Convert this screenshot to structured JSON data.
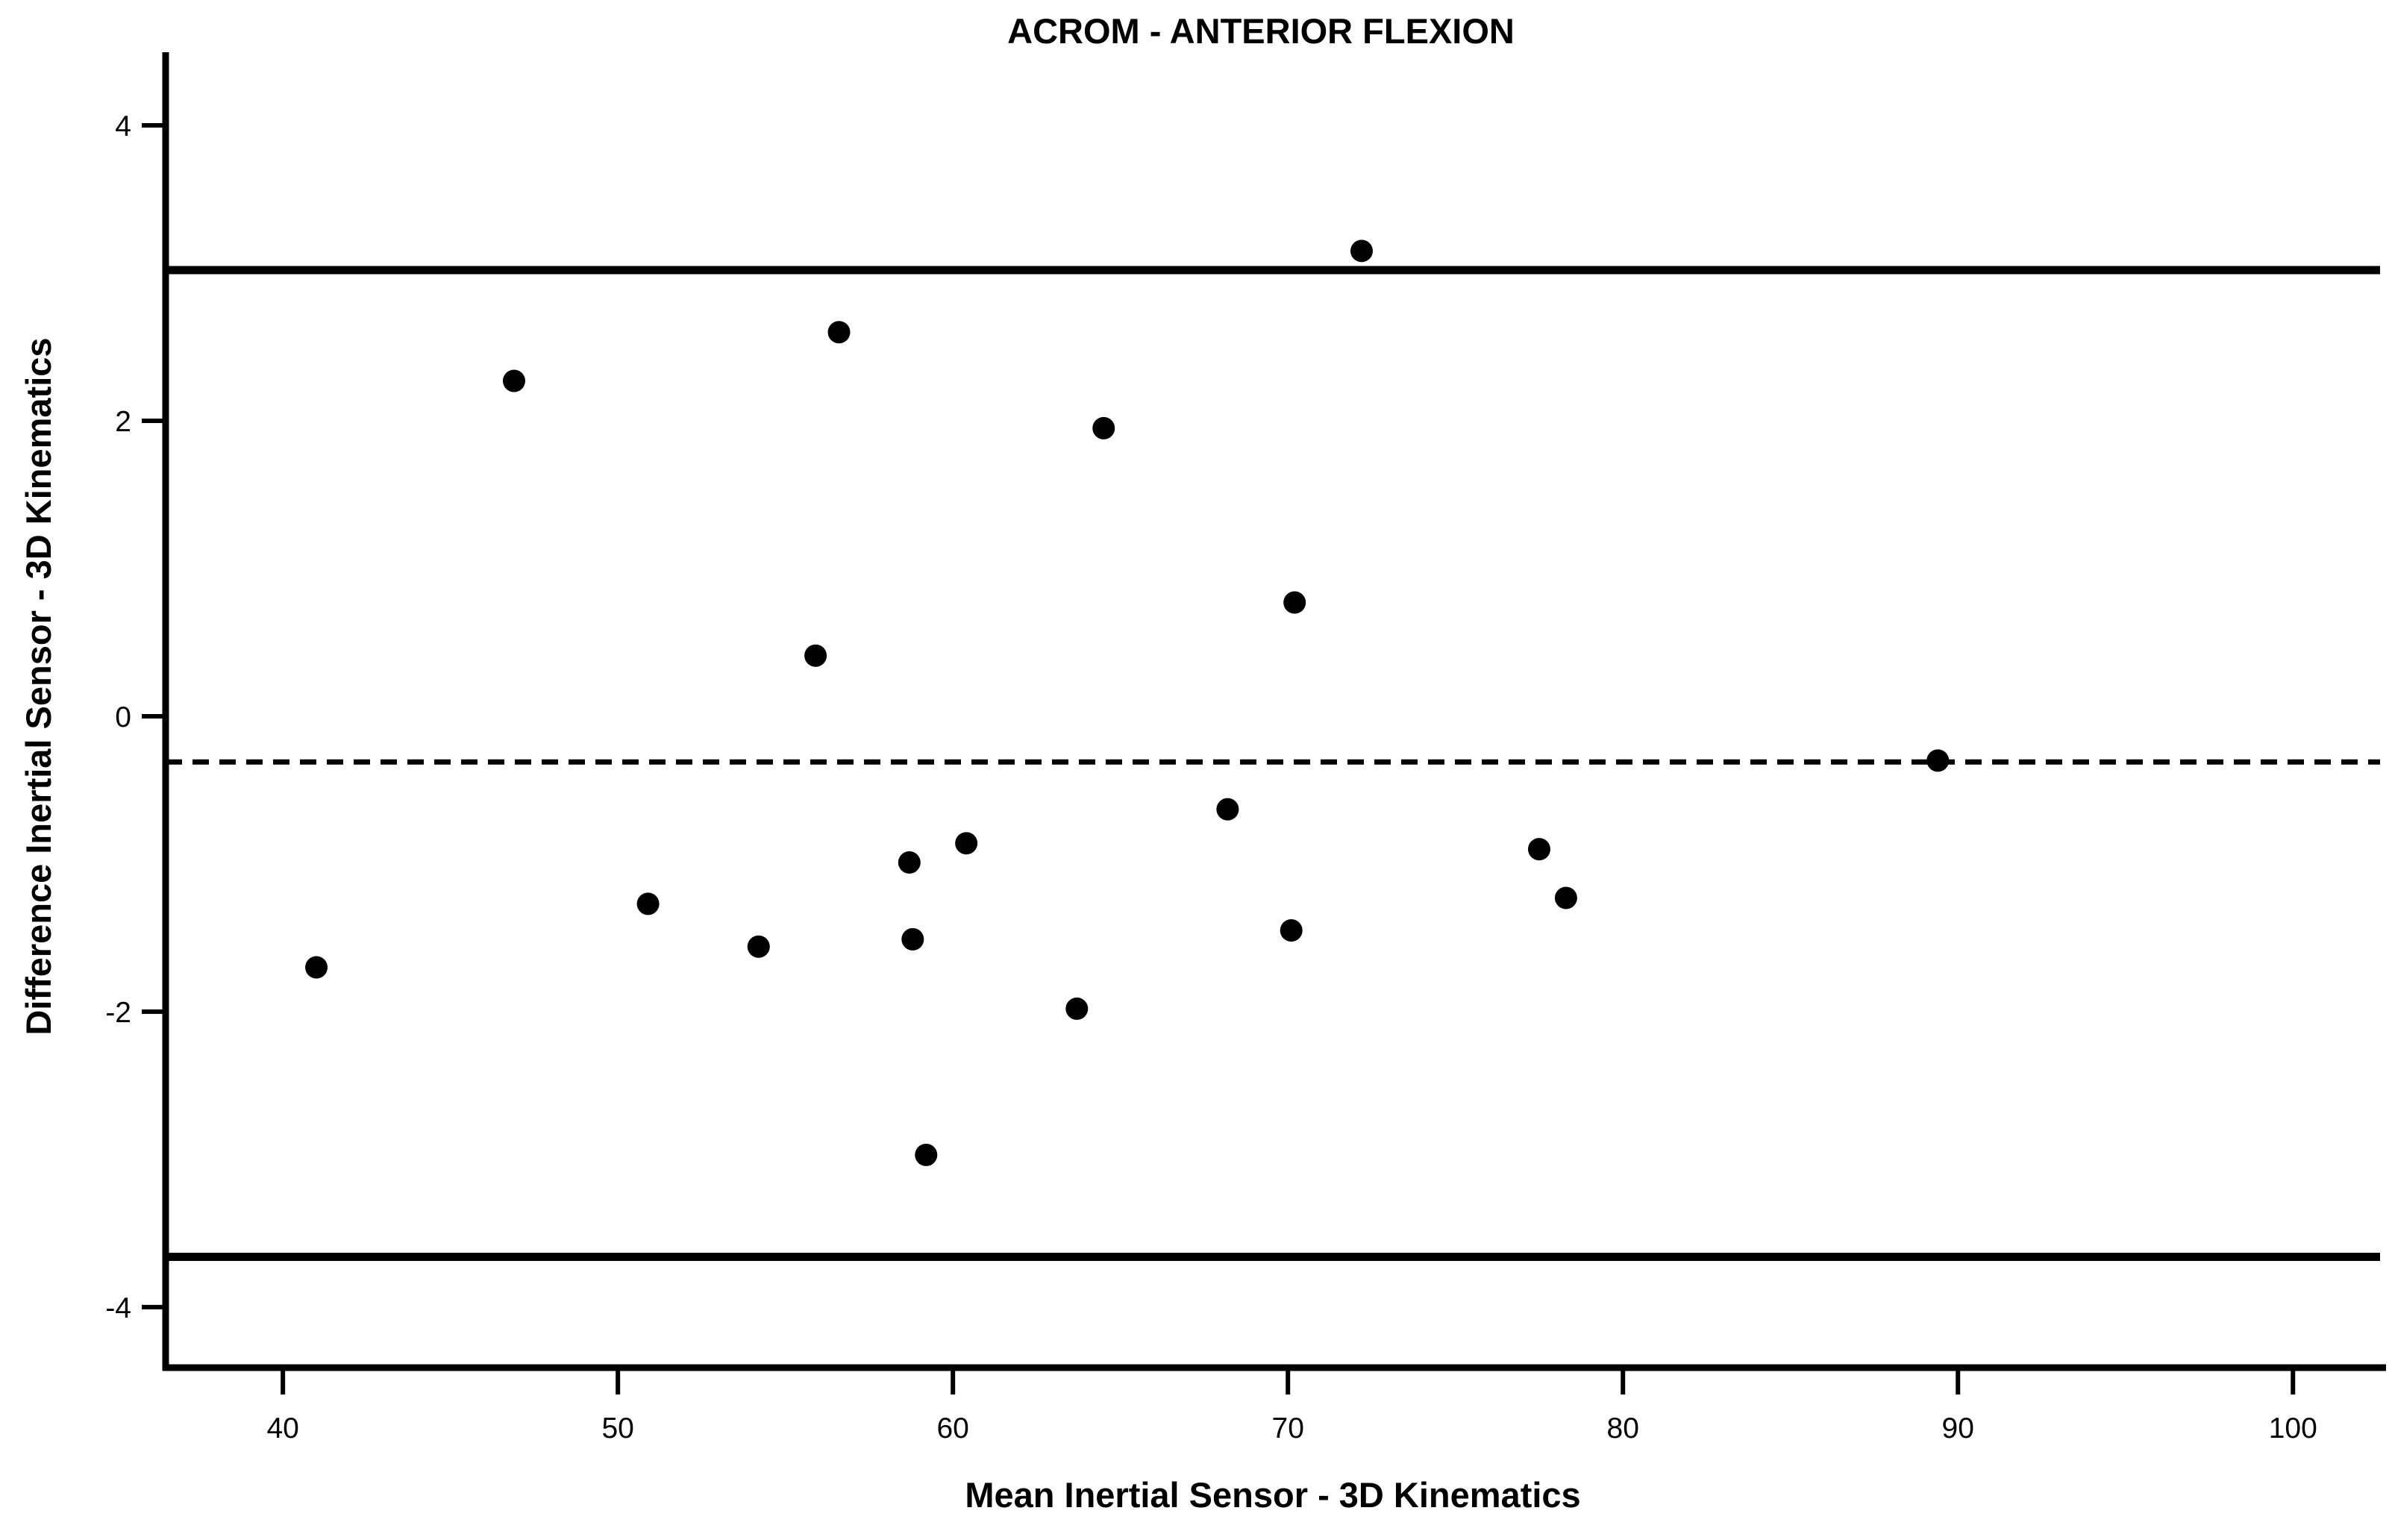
{
  "page": {
    "background_color": "#ffffff",
    "foreground_color": "#000000"
  },
  "chart_data": {
    "type": "scatter",
    "title": "ACROM - ANTERIOR FLEXION",
    "xlabel": "Mean Inertial Sensor - 3D Kinematics",
    "ylabel": "Difference Inertial Sensor - 3D Kinematics",
    "xlim": [
      36.5,
      102.6
    ],
    "ylim": [
      -4.41,
      4.47
    ],
    "xticks": [
      40,
      50,
      60,
      70,
      80,
      90,
      100
    ],
    "yticks": [
      4,
      2,
      0,
      -2,
      -4
    ],
    "grid": false,
    "legend": null,
    "marker": {
      "shape": "circle",
      "color": "#000000",
      "radius_px": 15
    },
    "points": [
      {
        "x": 41.0,
        "y": -1.7
      },
      {
        "x": 46.9,
        "y": 2.27
      },
      {
        "x": 50.9,
        "y": -1.27
      },
      {
        "x": 54.2,
        "y": -1.56
      },
      {
        "x": 55.9,
        "y": 0.41
      },
      {
        "x": 56.6,
        "y": 2.6
      },
      {
        "x": 58.7,
        "y": -0.99
      },
      {
        "x": 58.8,
        "y": -1.51
      },
      {
        "x": 59.2,
        "y": -2.97
      },
      {
        "x": 60.4,
        "y": -0.86
      },
      {
        "x": 63.7,
        "y": -1.98
      },
      {
        "x": 64.5,
        "y": 1.95
      },
      {
        "x": 68.2,
        "y": -0.63
      },
      {
        "x": 70.1,
        "y": -1.45
      },
      {
        "x": 70.2,
        "y": 0.77
      },
      {
        "x": 72.2,
        "y": 3.15
      },
      {
        "x": 77.5,
        "y": -0.9
      },
      {
        "x": 78.3,
        "y": -1.23
      },
      {
        "x": 89.4,
        "y": -0.3
      }
    ],
    "reference_lines": [
      {
        "name": "upper-limit-of-agreement",
        "y": 3.02,
        "style": "solid",
        "color": "#000000"
      },
      {
        "name": "mean-difference",
        "y": -0.31,
        "style": "dashed",
        "color": "#000000"
      },
      {
        "name": "lower-limit-of-agreement",
        "y": -3.66,
        "style": "solid",
        "color": "#000000"
      }
    ]
  }
}
